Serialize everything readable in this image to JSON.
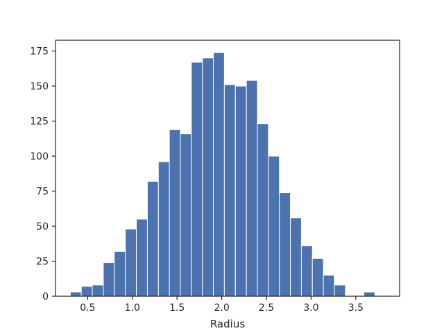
{
  "chart_data": {
    "type": "bar",
    "xlabel": "Radius",
    "ylabel": "",
    "title": "",
    "grid": false,
    "bar_color": "#4c72b0",
    "bin_width": 0.1231,
    "bins": [
      {
        "left": 0.306,
        "count": 3
      },
      {
        "left": 0.429,
        "count": 7
      },
      {
        "left": 0.552,
        "count": 8
      },
      {
        "left": 0.675,
        "count": 24
      },
      {
        "left": 0.798,
        "count": 32
      },
      {
        "left": 0.921,
        "count": 48
      },
      {
        "left": 1.045,
        "count": 55
      },
      {
        "left": 1.168,
        "count": 82
      },
      {
        "left": 1.291,
        "count": 96
      },
      {
        "left": 1.414,
        "count": 119
      },
      {
        "left": 1.537,
        "count": 116
      },
      {
        "left": 1.66,
        "count": 167
      },
      {
        "left": 1.783,
        "count": 170
      },
      {
        "left": 1.906,
        "count": 174
      },
      {
        "left": 2.029,
        "count": 151
      },
      {
        "left": 2.153,
        "count": 150
      },
      {
        "left": 2.276,
        "count": 154
      },
      {
        "left": 2.399,
        "count": 123
      },
      {
        "left": 2.522,
        "count": 100
      },
      {
        "left": 2.645,
        "count": 74
      },
      {
        "left": 2.768,
        "count": 56
      },
      {
        "left": 2.891,
        "count": 36
      },
      {
        "left": 3.014,
        "count": 27
      },
      {
        "left": 3.137,
        "count": 15
      },
      {
        "left": 3.261,
        "count": 8
      },
      {
        "left": 3.384,
        "count": 0
      },
      {
        "left": 3.507,
        "count": 0
      },
      {
        "left": 3.591,
        "count": 3
      }
    ],
    "xlim": [
      0.14,
      3.99
    ],
    "ylim": [
      0,
      182.7
    ],
    "x_ticks": [
      0.5,
      1.0,
      1.5,
      2.0,
      2.5,
      3.0,
      3.5
    ],
    "x_tick_labels": [
      "0.5",
      "1.0",
      "1.5",
      "2.0",
      "2.5",
      "3.0",
      "3.5"
    ],
    "y_ticks": [
      0,
      25,
      50,
      75,
      100,
      125,
      150,
      175
    ],
    "y_tick_labels": [
      "0",
      "25",
      "50",
      "75",
      "100",
      "125",
      "150",
      "175"
    ]
  }
}
